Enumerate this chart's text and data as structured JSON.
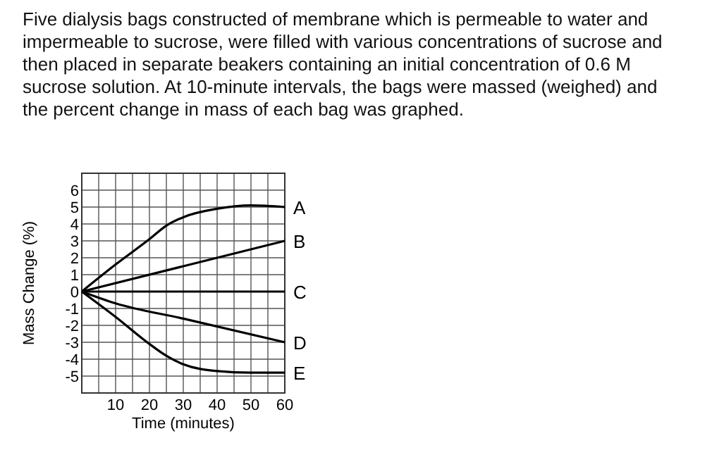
{
  "chart_data": {
    "type": "line",
    "title": "Five dialysis bags constructed of membrane which is permeable to water and impermeable to sucrose, were filled with various concentrations of sucrose and then placed in separate beakers containing an initial concentration of 0.6 M sucrose solution. At 10-minute intervals, the bags were massed (weighed) and the percent change in mass of each bag was graphed.",
    "xlabel": "Time (minutes)",
    "ylabel": "Mass Change (%)",
    "xlim": [
      0,
      60
    ],
    "xticks": [
      {
        "value": 0,
        "label": null
      },
      {
        "value": 5,
        "label": null
      },
      10,
      {
        "value": 15,
        "label": null
      },
      20,
      {
        "value": 25,
        "label": null
      },
      30,
      {
        "value": 35,
        "label": null
      },
      40,
      {
        "value": 45,
        "label": null
      },
      50,
      {
        "value": 55,
        "label": null
      },
      60
    ],
    "ylim": [
      -6,
      7
    ],
    "yticks": [
      {
        "value": -6,
        "label": null
      },
      -5,
      -4,
      -3,
      -2,
      -1,
      0,
      1,
      2,
      3,
      4,
      5,
      6,
      {
        "value": 7,
        "label": null
      }
    ],
    "grid": true,
    "marker": "none",
    "line_style": "solid",
    "series": [
      {
        "name": "A",
        "color": "#000000",
        "x": [
          0,
          10,
          20,
          25,
          30,
          40,
          50,
          60
        ],
        "values": [
          0,
          1.6,
          3.1,
          3.9,
          4.4,
          4.9,
          5.1,
          5.0
        ]
      },
      {
        "name": "B",
        "color": "#000000",
        "x": [
          0,
          30,
          60
        ],
        "values": [
          0,
          1.5,
          3
        ]
      },
      {
        "name": "C",
        "color": "#000000",
        "x": [
          0,
          30,
          60
        ],
        "values": [
          0,
          0,
          0
        ]
      },
      {
        "name": "D",
        "color": "#000000",
        "x": [
          0,
          10,
          30,
          60
        ],
        "values": [
          0,
          -0.7,
          -1.6,
          -3
        ]
      },
      {
        "name": "E",
        "color": "#000000",
        "x": [
          0,
          10,
          20,
          25,
          30,
          40,
          50,
          60
        ],
        "values": [
          0,
          -1.5,
          -3.1,
          -3.8,
          -4.3,
          -4.7,
          -4.8,
          -4.8
        ]
      }
    ]
  }
}
